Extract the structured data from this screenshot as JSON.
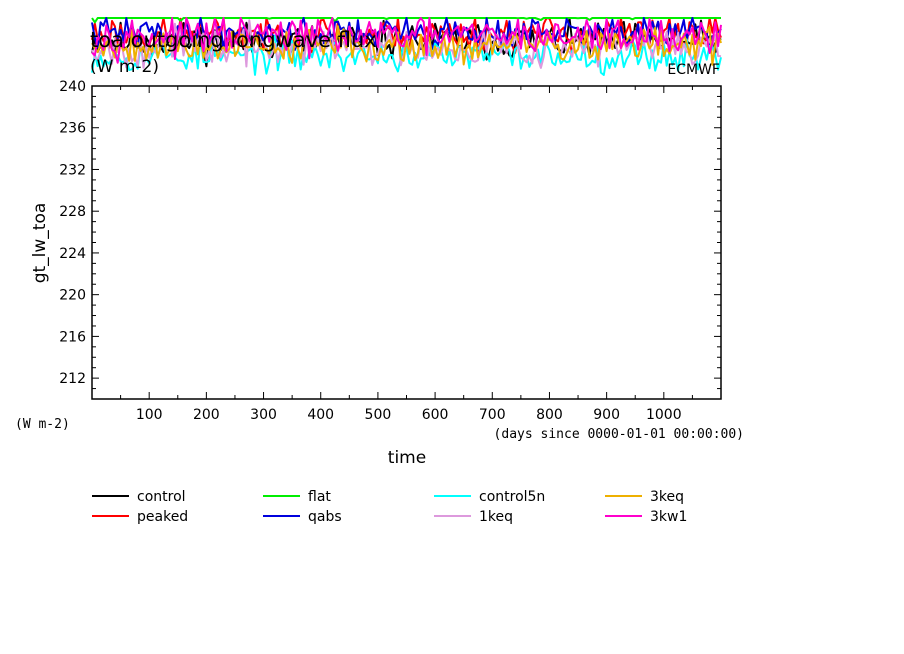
{
  "chart_data": {
    "type": "line",
    "title": "toa outgoing longwave flux",
    "title_units": "(W m-2)",
    "credit": "ECMWF",
    "xlabel": "time",
    "xunits_note": "(days since 0000-01-01 00:00:00)",
    "ylabel": "gt_lw_toa",
    "yunits": "(W m-2)",
    "xlim": [
      0,
      1100
    ],
    "ylim": [
      210,
      240
    ],
    "x_ticks": [
      100,
      200,
      300,
      400,
      500,
      600,
      700,
      800,
      900,
      1000
    ],
    "y_ticks": [
      212,
      216,
      220,
      224,
      228,
      232,
      236,
      240
    ],
    "x_step_days": 5,
    "grid": false,
    "legend_position": "bottom",
    "series": [
      {
        "name": "control",
        "color": "#000000",
        "mean": 244.3,
        "amplitude": 1.6,
        "seed": 11
      },
      {
        "name": "peaked",
        "color": "#ff0000",
        "mean": 245.0,
        "amplitude": 1.6,
        "seed": 23
      },
      {
        "name": "flat",
        "color": "#00ee00",
        "mean": 247.6,
        "amplitude": 1.2,
        "seed": 37
      },
      {
        "name": "qabs",
        "color": "#0000dd",
        "mean": 245.1,
        "amplitude": 1.4,
        "seed": 41
      },
      {
        "name": "control5n",
        "color": "#00ffff",
        "mean": 242.9,
        "amplitude": 1.4,
        "seed": 53
      },
      {
        "name": "1keq",
        "color": "#dd99dd",
        "mean": 243.8,
        "amplitude": 1.7,
        "seed": 67
      },
      {
        "name": "3keq",
        "color": "#eeb000",
        "mean": 243.9,
        "amplitude": 1.5,
        "seed": 79
      },
      {
        "name": "3kw1",
        "color": "#ff00cc",
        "mean": 244.8,
        "amplitude": 1.6,
        "seed": 97
      }
    ]
  }
}
